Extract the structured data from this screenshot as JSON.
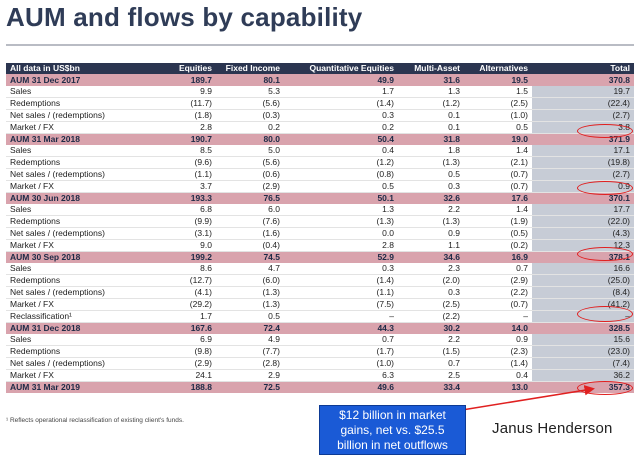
{
  "title": "AUM and flows by capability",
  "table": {
    "headers": [
      "All data in US$bn",
      "Equities",
      "Fixed Income",
      "Quantitative Equities",
      "Multi-Asset",
      "Alternatives",
      "Total"
    ],
    "sections": [
      {
        "aum": [
          "AUM 31 Dec 2017",
          "189.7",
          "80.1",
          "49.9",
          "31.6",
          "19.5",
          "370.8"
        ],
        "rows": [
          [
            "Sales",
            "9.9",
            "5.3",
            "1.7",
            "1.3",
            "1.5",
            "19.7"
          ],
          [
            "Redemptions",
            "(11.7)",
            "(5.6)",
            "(1.4)",
            "(1.2)",
            "(2.5)",
            "(22.4)"
          ],
          [
            "Net sales / (redemptions)",
            "(1.8)",
            "(0.3)",
            "0.3",
            "0.1",
            "(1.0)",
            "(2.7)"
          ],
          [
            "Market / FX",
            "2.8",
            "0.2",
            "0.2",
            "0.1",
            "0.5",
            "3.8"
          ]
        ]
      },
      {
        "aum": [
          "AUM 31 Mar 2018",
          "190.7",
          "80.0",
          "50.4",
          "31.8",
          "19.0",
          "371.9"
        ],
        "rows": [
          [
            "Sales",
            "8.5",
            "5.0",
            "0.4",
            "1.8",
            "1.4",
            "17.1"
          ],
          [
            "Redemptions",
            "(9.6)",
            "(5.6)",
            "(1.2)",
            "(1.3)",
            "(2.1)",
            "(19.8)"
          ],
          [
            "Net sales / (redemptions)",
            "(1.1)",
            "(0.6)",
            "(0.8)",
            "0.5",
            "(0.7)",
            "(2.7)"
          ],
          [
            "Market / FX",
            "3.7",
            "(2.9)",
            "0.5",
            "0.3",
            "(0.7)",
            "0.9"
          ]
        ]
      },
      {
        "aum": [
          "AUM 30 Jun 2018",
          "193.3",
          "76.5",
          "50.1",
          "32.6",
          "17.6",
          "370.1"
        ],
        "rows": [
          [
            "Sales",
            "6.8",
            "6.0",
            "1.3",
            "2.2",
            "1.4",
            "17.7"
          ],
          [
            "Redemptions",
            "(9.9)",
            "(7.6)",
            "(1.3)",
            "(1.3)",
            "(1.9)",
            "(22.0)"
          ],
          [
            "Net sales / (redemptions)",
            "(3.1)",
            "(1.6)",
            "0.0",
            "0.9",
            "(0.5)",
            "(4.3)"
          ],
          [
            "Market / FX",
            "9.0",
            "(0.4)",
            "2.8",
            "1.1",
            "(0.2)",
            "12.3"
          ]
        ]
      },
      {
        "aum": [
          "AUM 30 Sep 2018",
          "199.2",
          "74.5",
          "52.9",
          "34.6",
          "16.9",
          "378.1"
        ],
        "rows": [
          [
            "Sales",
            "8.6",
            "4.7",
            "0.3",
            "2.3",
            "0.7",
            "16.6"
          ],
          [
            "Redemptions",
            "(12.7)",
            "(6.0)",
            "(1.4)",
            "(2.0)",
            "(2.9)",
            "(25.0)"
          ],
          [
            "Net sales / (redemptions)",
            "(4.1)",
            "(1.3)",
            "(1.1)",
            "0.3",
            "(2.2)",
            "(8.4)"
          ],
          [
            "Market / FX",
            "(29.2)",
            "(1.3)",
            "(7.5)",
            "(2.5)",
            "(0.7)",
            "(41.2)"
          ],
          [
            "Reclassification¹",
            "1.7",
            "0.5",
            "–",
            "(2.2)",
            "–",
            "–"
          ]
        ]
      },
      {
        "aum": [
          "AUM 31 Dec 2018",
          "167.6",
          "72.4",
          "44.3",
          "30.2",
          "14.0",
          "328.5"
        ],
        "rows": [
          [
            "Sales",
            "6.9",
            "4.9",
            "0.7",
            "2.2",
            "0.9",
            "15.6"
          ],
          [
            "Redemptions",
            "(9.8)",
            "(7.7)",
            "(1.7)",
            "(1.5)",
            "(2.3)",
            "(23.0)"
          ],
          [
            "Net sales / (redemptions)",
            "(2.9)",
            "(2.8)",
            "(1.0)",
            "0.7",
            "(1.4)",
            "(7.4)"
          ],
          [
            "Market / FX",
            "24.1",
            "2.9",
            "6.3",
            "2.5",
            "0.4",
            "36.2"
          ]
        ]
      },
      {
        "aum": [
          "AUM 31 Mar 2019",
          "188.8",
          "72.5",
          "49.6",
          "33.4",
          "13.0",
          "357.3"
        ],
        "rows": []
      }
    ]
  },
  "footnote": "¹ Reflects operational reclassification of existing client's funds.",
  "callout": {
    "line1": "$12 billion in market",
    "line2": "gains, net vs. $25.5",
    "line3": "billion in net outflows"
  },
  "brand": "Janus Henderson",
  "colors": {
    "header": "#2b3550",
    "aum_row": "#d9a3ad",
    "total_col": "#c7ccd6",
    "callout": "#1a5ad6",
    "annotation": "#e02020"
  }
}
